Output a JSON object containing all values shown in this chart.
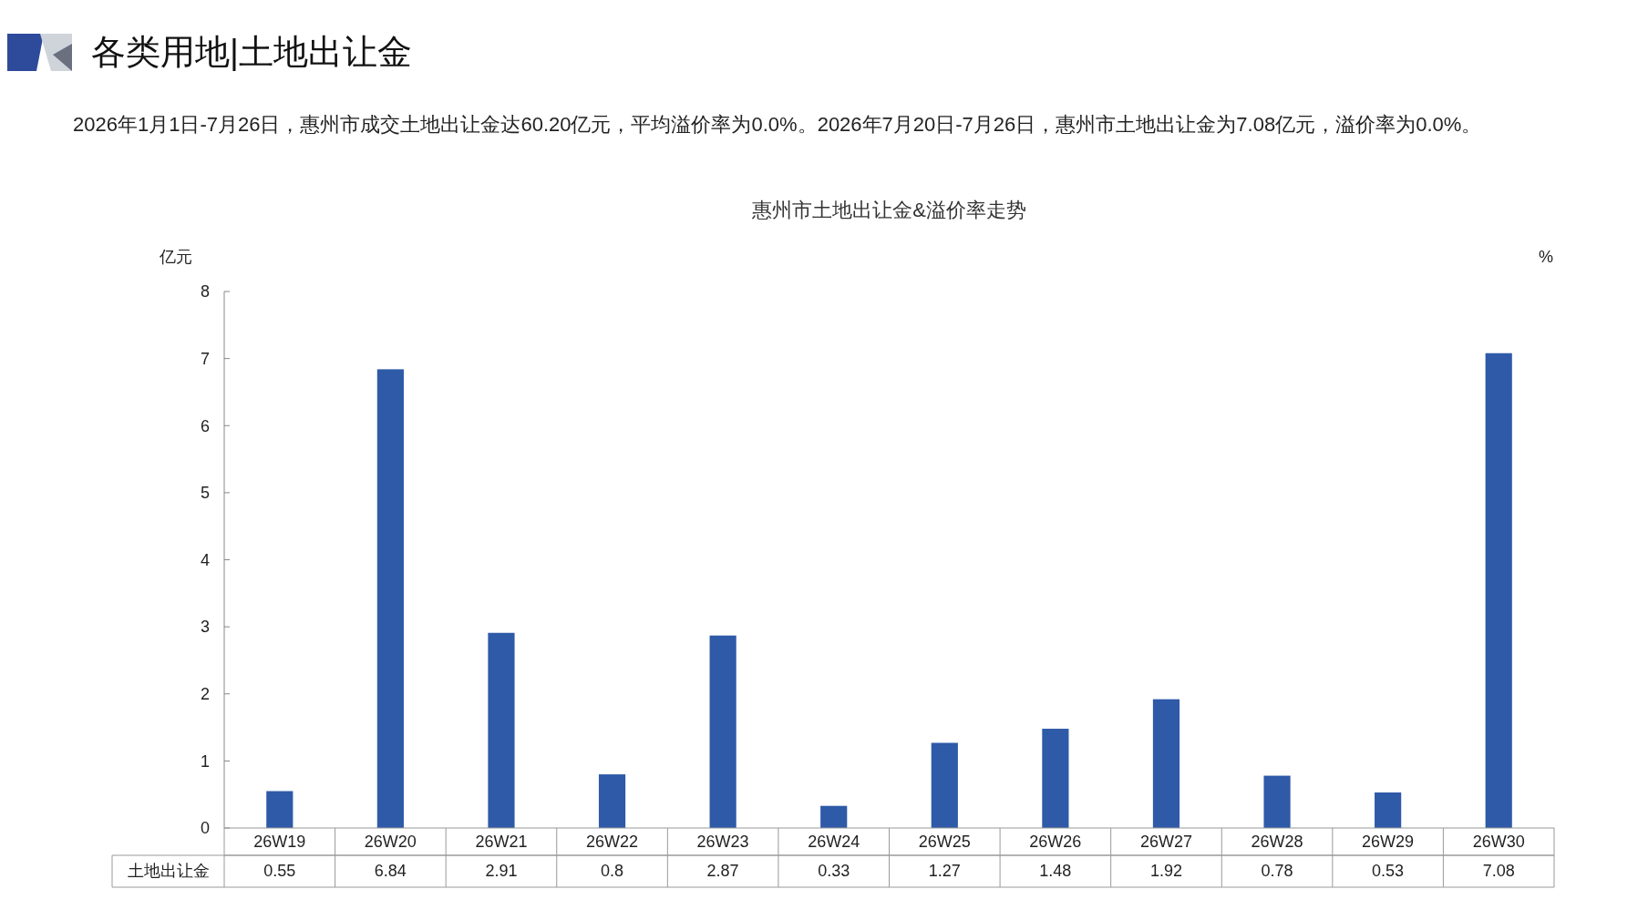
{
  "chart_data": {
    "type": "bar",
    "title": "各类用地|土地出让金",
    "subtitle": "惠州市土地出让金&溢价率走势",
    "annotations": [
      "2026年1月1日-7月26日，惠州市成交土地出让金达60.20亿元，平均溢价率为0.0%。2026年7月20日-7月26日，惠州市土地出让金为7.08亿元，溢价率为0.0%。"
    ],
    "ylabel": "亿元",
    "y2label": "%",
    "categories": [
      "26W19",
      "26W20",
      "26W21",
      "26W22",
      "26W23",
      "26W24",
      "26W25",
      "26W26",
      "26W27",
      "26W28",
      "26W29",
      "26W30"
    ],
    "series": [
      {
        "name": "土地出让金",
        "color": "#2e5aa8",
        "values": [
          0.55,
          6.84,
          2.91,
          0.8,
          2.87,
          0.33,
          1.27,
          1.48,
          1.92,
          0.78,
          0.53,
          7.08
        ]
      }
    ],
    "ylim": [
      0,
      8
    ],
    "yticks": [
      0,
      1,
      2,
      3,
      4,
      5,
      6,
      7,
      8
    ],
    "grid": false,
    "legend": false,
    "data_labels": true
  }
}
